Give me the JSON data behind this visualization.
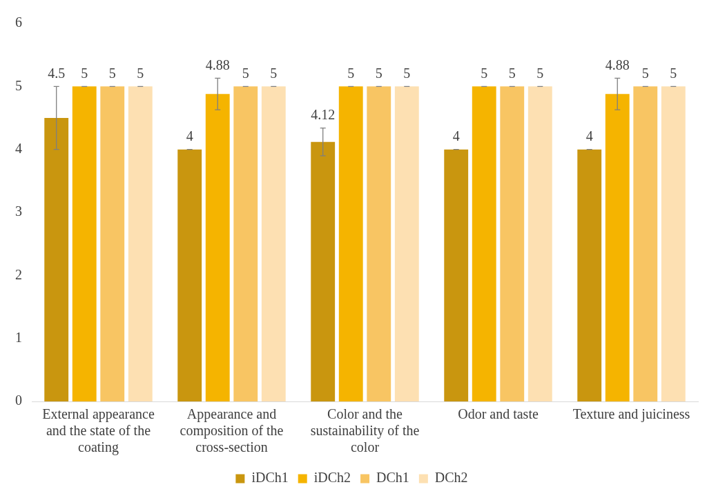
{
  "chart_data": {
    "type": "bar",
    "categories": [
      "External appearance and the state of the coating",
      "Appearance and composition of the cross-section",
      "Color and the sustainability of the color",
      "Odor and taste",
      "Texture and juiciness"
    ],
    "series": [
      {
        "name": "iDCh1",
        "color": "#c9960f",
        "values": [
          4.5,
          4,
          4.12,
          4,
          4
        ],
        "errors": [
          0.5,
          0,
          0.22,
          0,
          0
        ]
      },
      {
        "name": "iDCh2",
        "color": "#f5b400",
        "values": [
          5,
          4.88,
          5,
          5,
          4.88
        ],
        "errors": [
          0,
          0.25,
          0,
          0,
          0.25
        ]
      },
      {
        "name": "DCh1",
        "color": "#f8c563",
        "values": [
          5,
          5,
          5,
          5,
          5
        ],
        "errors": [
          0,
          0,
          0,
          0,
          0
        ]
      },
      {
        "name": "DCh2",
        "color": "#fde0b2",
        "values": [
          5,
          5,
          5,
          5,
          5
        ],
        "errors": [
          0,
          0,
          0,
          0,
          0
        ]
      }
    ],
    "ylim": [
      0,
      6
    ],
    "yticks": [
      0,
      1,
      2,
      3,
      4,
      5,
      6
    ],
    "grid": false,
    "legend": "bottom",
    "data_labels": true
  }
}
